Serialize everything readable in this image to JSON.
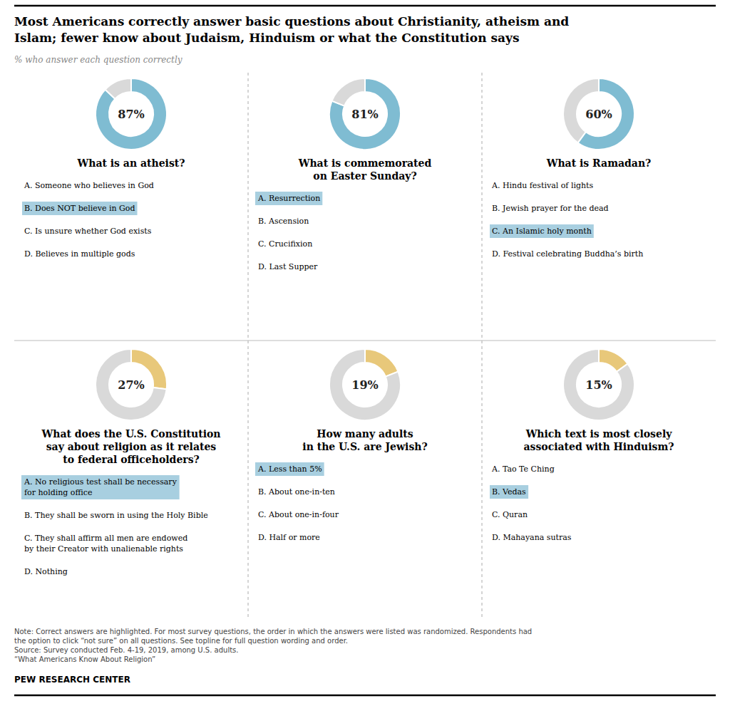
{
  "title": "Most Americans correctly answer basic questions about Christianity, atheism and\nIslam; fewer know about Judaism, Hinduism or what the Constitution says",
  "subtitle": "% who answer each question correctly",
  "note": "Note: Correct answers are highlighted. For most survey questions, the order in which the answers were listed was randomized. Respondents had\nthe option to click “not sure” on all questions. See topline for full question wording and order.\nSource: Survey conducted Feb. 4-19, 2019, among U.S. adults.\n“What Americans Know About Religion”",
  "source": "PEW RESEARCH CENTER",
  "highlight_color": "#a8cfe0",
  "chart_data": [
    {
      "type": "pie",
      "title": "What is an atheist?",
      "values": [
        87,
        13
      ],
      "value_labels": [
        "87%",
        null
      ],
      "data_labels": true,
      "colors": [
        "#7fbcd2",
        "#d9d9d9"
      ],
      "answers": [
        {
          "label": "A. Someone who believes in God",
          "correct": false
        },
        {
          "label": "B. Does NOT believe in God",
          "correct": true
        },
        {
          "label": "C. Is unsure whether God exists",
          "correct": false
        },
        {
          "label": "D. Believes in multiple gods",
          "correct": false
        }
      ]
    },
    {
      "type": "pie",
      "title": "What is commemorated\non Easter Sunday?",
      "values": [
        81,
        19
      ],
      "value_labels": [
        "81%",
        null
      ],
      "data_labels": true,
      "colors": [
        "#7fbcd2",
        "#d9d9d9"
      ],
      "answers": [
        {
          "label": "A. Resurrection",
          "correct": true
        },
        {
          "label": "B. Ascension",
          "correct": false
        },
        {
          "label": "C. Crucifixion",
          "correct": false
        },
        {
          "label": "D. Last Supper",
          "correct": false
        }
      ]
    },
    {
      "type": "pie",
      "title": "What is Ramadan?",
      "values": [
        60,
        40
      ],
      "value_labels": [
        "60%",
        null
      ],
      "data_labels": true,
      "colors": [
        "#7fbcd2",
        "#d9d9d9"
      ],
      "answers": [
        {
          "label": "A. Hindu festival of lights",
          "correct": false
        },
        {
          "label": "B. Jewish prayer for the dead",
          "correct": false
        },
        {
          "label": "C. An Islamic holy month",
          "correct": true
        },
        {
          "label": "D. Festival celebrating Buddha’s birth",
          "correct": false
        }
      ]
    },
    {
      "type": "pie",
      "title": "What does the U.S. Constitution\nsay about religion as it relates\nto federal officeholders?",
      "values": [
        27,
        73
      ],
      "value_labels": [
        "27%",
        null
      ],
      "data_labels": true,
      "colors": [
        "#e8c87a",
        "#d9d9d9"
      ],
      "answers": [
        {
          "label": "A. No religious test shall be necessary\nfor holding office",
          "correct": true
        },
        {
          "label": "B. They shall be sworn in using the Holy Bible",
          "correct": false
        },
        {
          "label": "C. They shall affirm all men are endowed\nby their Creator with unalienable rights",
          "correct": false
        },
        {
          "label": "D. Nothing",
          "correct": false
        }
      ]
    },
    {
      "type": "pie",
      "title": "How many adults\nin the U.S. are Jewish?",
      "values": [
        19,
        81
      ],
      "value_labels": [
        "19%",
        null
      ],
      "data_labels": true,
      "colors": [
        "#e8c87a",
        "#d9d9d9"
      ],
      "answers": [
        {
          "label": "A. Less than 5%",
          "correct": true
        },
        {
          "label": "B. About one-in-ten",
          "correct": false
        },
        {
          "label": "C. About one-in-four",
          "correct": false
        },
        {
          "label": "D. Half or more",
          "correct": false
        }
      ]
    },
    {
      "type": "pie",
      "title": "Which text is most closely\nassociated with Hinduism?",
      "values": [
        15,
        85
      ],
      "value_labels": [
        "15%",
        null
      ],
      "data_labels": true,
      "colors": [
        "#e8c87a",
        "#d9d9d9"
      ],
      "answers": [
        {
          "label": "A. Tao Te Ching",
          "correct": false
        },
        {
          "label": "B. Vedas",
          "correct": true
        },
        {
          "label": "C. Quran",
          "correct": false
        },
        {
          "label": "D. Mahayana sutras",
          "correct": false
        }
      ]
    }
  ]
}
